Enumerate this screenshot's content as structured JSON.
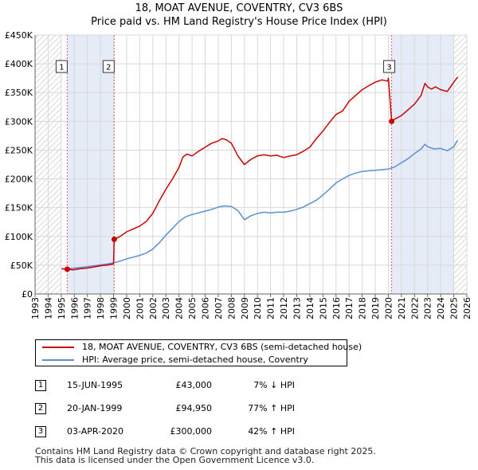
{
  "title_line1": "18, MOAT AVENUE, COVENTRY, CV3 6BS",
  "title_line2": "Price paid vs. HM Land Registry's House Price Index (HPI)",
  "chart_data": {
    "type": "line",
    "title": "18, MOAT AVENUE, COVENTRY, CV3 6BS — Price paid vs. HM Land Registry's House Price Index (HPI)",
    "xlabel": "",
    "ylabel": "",
    "xlim": [
      1993,
      2026
    ],
    "ylim": [
      0,
      450000
    ],
    "x_ticks": [
      "1993",
      "1994",
      "1995",
      "1996",
      "1997",
      "1998",
      "1999",
      "2000",
      "2001",
      "2002",
      "2003",
      "2004",
      "2005",
      "2006",
      "2007",
      "2008",
      "2009",
      "2010",
      "2011",
      "2012",
      "2013",
      "2014",
      "2015",
      "2016",
      "2017",
      "2018",
      "2019",
      "2020",
      "2021",
      "2022",
      "2023",
      "2024",
      "2025",
      "2026"
    ],
    "y_ticks": [
      {
        "value": 0,
        "label": "£0"
      },
      {
        "value": 50000,
        "label": "£50K"
      },
      {
        "value": 100000,
        "label": "£100K"
      },
      {
        "value": 150000,
        "label": "£150K"
      },
      {
        "value": 200000,
        "label": "£200K"
      },
      {
        "value": 250000,
        "label": "£250K"
      },
      {
        "value": 300000,
        "label": "£300K"
      },
      {
        "value": 350000,
        "label": "£350K"
      },
      {
        "value": 400000,
        "label": "£400K"
      },
      {
        "value": 450000,
        "label": "£450K"
      }
    ],
    "grid": true,
    "hatched_ranges": [
      [
        1993,
        1995.04
      ],
      [
        2025.0,
        2026
      ]
    ],
    "highlight_ranges": [
      [
        1995.45,
        1999.05
      ],
      [
        2020.25,
        2025.0
      ]
    ],
    "series": [
      {
        "name": "18, MOAT AVENUE, COVENTRY, CV3 6BS (semi-detached house)",
        "color": "#cc0000",
        "x": [
          1995.04,
          1995.46,
          1995.9,
          1996.5,
          1997.0,
          1997.5,
          1998.0,
          1998.5,
          1999.0,
          1999.05,
          1999.5,
          2000.0,
          2000.5,
          2001.0,
          2001.5,
          2002.0,
          2002.5,
          2003.0,
          2003.5,
          2004.0,
          2004.3,
          2004.6,
          2005.0,
          2005.5,
          2006.0,
          2006.5,
          2007.0,
          2007.3,
          2007.6,
          2008.0,
          2008.5,
          2009.0,
          2009.5,
          2010.0,
          2010.5,
          2011.0,
          2011.5,
          2012.0,
          2012.5,
          2013.0,
          2013.5,
          2014.0,
          2014.5,
          2015.0,
          2015.5,
          2016.0,
          2016.5,
          2017.0,
          2017.5,
          2018.0,
          2018.5,
          2019.0,
          2019.5,
          2019.95,
          2020.0,
          2020.25,
          2020.5,
          2021.0,
          2021.5,
          2022.0,
          2022.5,
          2022.8,
          2023.0,
          2023.3,
          2023.6,
          2024.0,
          2024.5,
          2025.0,
          2025.3
        ],
        "values": [
          44000,
          43000,
          42000,
          44000,
          45000,
          47000,
          49000,
          50000,
          52000,
          94950,
          100000,
          108000,
          113000,
          118000,
          126000,
          140000,
          162000,
          182000,
          200000,
          220000,
          238000,
          243000,
          240000,
          248000,
          255000,
          262000,
          266000,
          270000,
          268000,
          262000,
          240000,
          225000,
          234000,
          240000,
          242000,
          240000,
          241000,
          237000,
          240000,
          242000,
          248000,
          255000,
          270000,
          283000,
          298000,
          312000,
          318000,
          335000,
          345000,
          355000,
          362000,
          368000,
          372000,
          370000,
          375000,
          300000,
          304000,
          310000,
          320000,
          330000,
          345000,
          366000,
          360000,
          356000,
          360000,
          355000,
          352000,
          368000,
          377000
        ]
      },
      {
        "name": "HPI: Average price, semi-detached house, Coventry",
        "color": "#5b8fcf",
        "x": [
          1995.04,
          1995.5,
          1996.0,
          1996.5,
          1997.0,
          1997.5,
          1998.0,
          1998.5,
          1999.0,
          1999.5,
          2000.0,
          2000.5,
          2001.0,
          2001.5,
          2002.0,
          2002.5,
          2003.0,
          2003.5,
          2004.0,
          2004.5,
          2005.0,
          2005.5,
          2006.0,
          2006.5,
          2007.0,
          2007.5,
          2008.0,
          2008.5,
          2009.0,
          2009.5,
          2010.0,
          2010.5,
          2011.0,
          2011.5,
          2012.0,
          2012.5,
          2013.0,
          2013.5,
          2014.0,
          2014.5,
          2015.0,
          2015.5,
          2016.0,
          2016.5,
          2017.0,
          2017.5,
          2018.0,
          2018.5,
          2019.0,
          2019.5,
          2020.0,
          2020.5,
          2021.0,
          2021.5,
          2022.0,
          2022.5,
          2022.8,
          2023.0,
          2023.5,
          2024.0,
          2024.5,
          2025.0,
          2025.3
        ],
        "values": [
          43000,
          44000,
          45000,
          46000,
          47500,
          49000,
          50500,
          52000,
          54000,
          57000,
          61000,
          64000,
          67000,
          71000,
          78000,
          89000,
          102000,
          114000,
          126000,
          134000,
          138000,
          141000,
          144000,
          147000,
          151000,
          153000,
          152000,
          145000,
          129000,
          136000,
          140000,
          142000,
          141000,
          142000,
          142000,
          144000,
          147000,
          151000,
          157000,
          163000,
          172000,
          182000,
          193000,
          200000,
          206000,
          210000,
          213000,
          214000,
          215000,
          216000,
          217000,
          221000,
          228000,
          235000,
          244000,
          252000,
          260000,
          256000,
          252000,
          253000,
          249000,
          256000,
          267000
        ]
      }
    ],
    "sales": [
      {
        "label": "1",
        "x": 1995.46,
        "value": 43000
      },
      {
        "label": "2",
        "x": 1999.05,
        "value": 94950
      },
      {
        "label": "3",
        "x": 2020.25,
        "value": 300000
      }
    ]
  },
  "legend": {
    "property_label": "18, MOAT AVENUE, COVENTRY, CV3 6BS (semi-detached house)",
    "hpi_label": "HPI: Average price, semi-detached house, Coventry"
  },
  "sales_table": [
    {
      "num": "1",
      "date": "15-JUN-1995",
      "price": "£43,000",
      "hpi": "7% ↓ HPI"
    },
    {
      "num": "2",
      "date": "20-JAN-1999",
      "price": "£94,950",
      "hpi": "77% ↑ HPI"
    },
    {
      "num": "3",
      "date": "03-APR-2020",
      "price": "£300,000",
      "hpi": "42% ↑ HPI"
    }
  ],
  "footer_line1": "Contains HM Land Registry data © Crown copyright and database right 2025.",
  "footer_line2": "This data is licensed under the Open Government Licence v3.0."
}
